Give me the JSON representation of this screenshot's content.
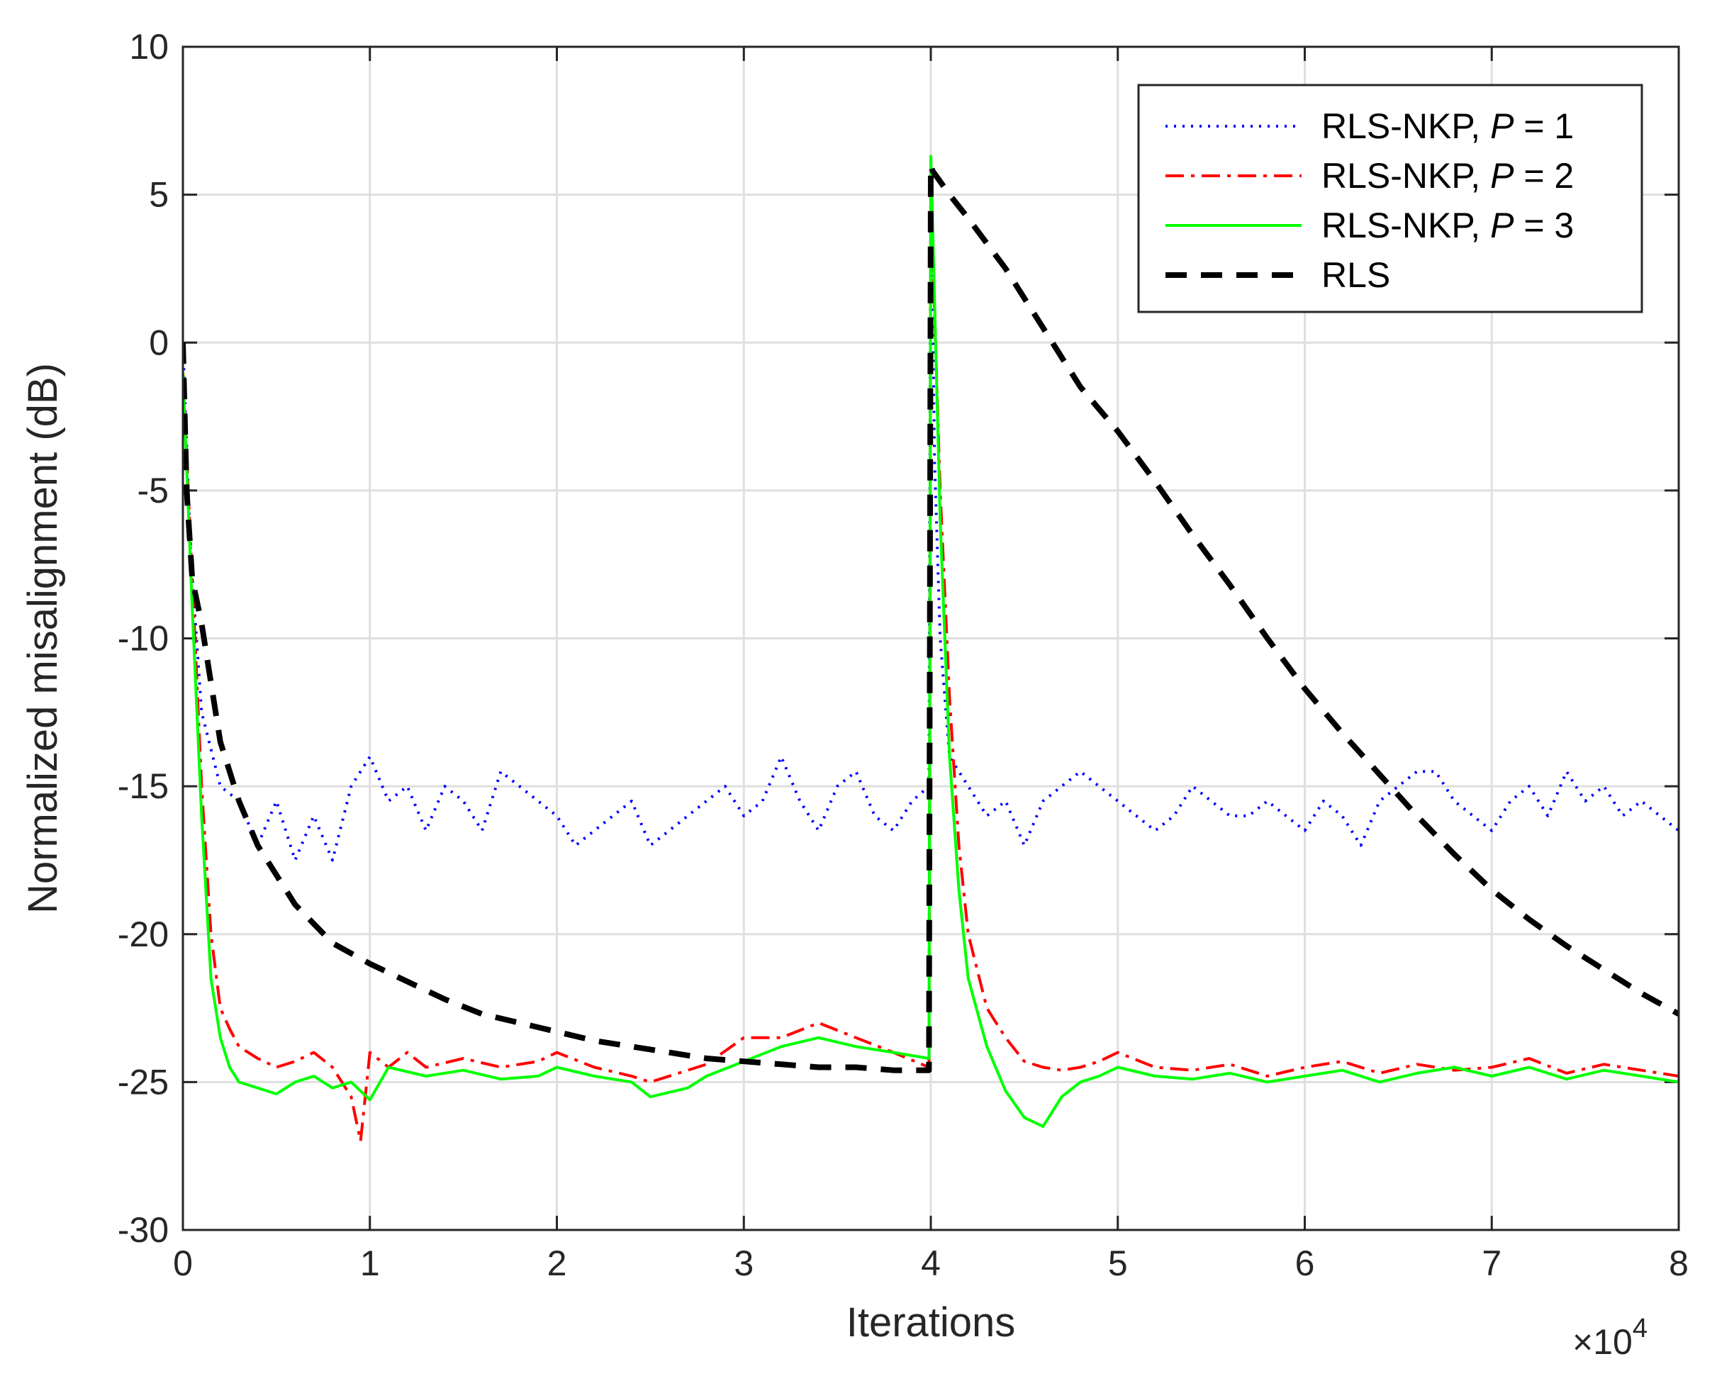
{
  "chart_data": {
    "type": "line",
    "title": "",
    "xlabel": "Iterations",
    "ylabel": "Normalized misalignment (dB)",
    "x_multiplier": "×10",
    "x_multiplier_exp": "4",
    "xlim": [
      0,
      8
    ],
    "ylim": [
      -30,
      10
    ],
    "xticks": [
      0,
      1,
      2,
      3,
      4,
      5,
      6,
      7,
      8
    ],
    "xtick_labels": [
      "0",
      "1",
      "2",
      "3",
      "4",
      "5",
      "6",
      "7",
      "8"
    ],
    "yticks": [
      10,
      5,
      0,
      -5,
      -10,
      -15,
      -20,
      -25,
      -30
    ],
    "ytick_labels": [
      "10",
      "5",
      "0",
      "-5",
      "-10",
      "-15",
      "-20",
      "-25",
      "-30"
    ],
    "grid": true,
    "legend_position": "top-right",
    "legend": [
      {
        "prefix": "RLS-NKP, ",
        "var": "P",
        "suffix": " = 1"
      },
      {
        "prefix": "RLS-NKP, ",
        "var": "P",
        "suffix": " = 2"
      },
      {
        "prefix": "RLS-NKP, ",
        "var": "P",
        "suffix": " = 3"
      },
      {
        "prefix": "RLS",
        "var": "",
        "suffix": ""
      }
    ],
    "series": [
      {
        "name": "RLS-NKP, P = 1",
        "color": "#0000ff",
        "style": "dotted",
        "x": [
          0,
          0.04,
          0.1,
          0.2,
          0.3,
          0.4,
          0.5,
          0.6,
          0.7,
          0.8,
          0.9,
          1.0,
          1.1,
          1.2,
          1.3,
          1.4,
          1.5,
          1.6,
          1.7,
          1.8,
          1.9,
          2.0,
          2.1,
          2.2,
          2.3,
          2.4,
          2.5,
          2.6,
          2.7,
          2.8,
          2.9,
          3.0,
          3.1,
          3.2,
          3.3,
          3.4,
          3.5,
          3.6,
          3.7,
          3.8,
          3.9,
          3.99,
          4.0,
          4.02,
          4.05,
          4.1,
          4.2,
          4.3,
          4.4,
          4.5,
          4.6,
          4.7,
          4.8,
          4.9,
          5.0,
          5.1,
          5.2,
          5.3,
          5.4,
          5.5,
          5.6,
          5.7,
          5.8,
          5.9,
          6.0,
          6.1,
          6.2,
          6.3,
          6.4,
          6.5,
          6.6,
          6.7,
          6.8,
          6.9,
          7.0,
          7.1,
          7.2,
          7.3,
          7.4,
          7.5,
          7.6,
          7.7,
          7.8,
          7.9,
          8.0
        ],
        "y": [
          0,
          -7,
          -12.5,
          -15,
          -15.5,
          -17,
          -15.5,
          -17.5,
          -16,
          -17.5,
          -15,
          -14,
          -15.5,
          -15,
          -16.5,
          -15,
          -15.5,
          -16.5,
          -14.5,
          -15,
          -15.5,
          -16,
          -17,
          -16.5,
          -16,
          -15.5,
          -17,
          -16.5,
          -16,
          -15.5,
          -15,
          -16,
          -15.5,
          -14,
          -15.5,
          -16.5,
          -15,
          -14.5,
          -16,
          -16.5,
          -15.5,
          -15,
          6,
          -4,
          -10,
          -14,
          -15,
          -16,
          -15.5,
          -17,
          -15.5,
          -15,
          -14.5,
          -15,
          -15.5,
          -16,
          -16.5,
          -16,
          -15,
          -15.5,
          -16,
          -16,
          -15.5,
          -16,
          -16.5,
          -15.5,
          -16,
          -17,
          -15.5,
          -15,
          -14.5,
          -14.5,
          -15.5,
          -16,
          -16.5,
          -15.5,
          -15,
          -16,
          -14.5,
          -15.5,
          -15,
          -16,
          -15.5,
          -16,
          -16.5
        ]
      },
      {
        "name": "RLS-NKP, P = 2",
        "color": "#ff0000",
        "style": "dashdot",
        "x": [
          0,
          0.05,
          0.1,
          0.15,
          0.2,
          0.25,
          0.3,
          0.4,
          0.5,
          0.6,
          0.7,
          0.8,
          0.9,
          0.95,
          1.0,
          1.1,
          1.2,
          1.3,
          1.5,
          1.7,
          1.9,
          2.0,
          2.2,
          2.4,
          2.5,
          2.7,
          2.8,
          3.0,
          3.2,
          3.4,
          3.6,
          3.8,
          3.99,
          4.0,
          4.05,
          4.1,
          4.15,
          4.2,
          4.3,
          4.4,
          4.5,
          4.6,
          4.7,
          4.8,
          4.9,
          5.0,
          5.2,
          5.4,
          5.6,
          5.8,
          6.0,
          6.2,
          6.4,
          6.6,
          6.8,
          7.0,
          7.2,
          7.4,
          7.6,
          7.8,
          8.0
        ],
        "y": [
          -1,
          -8,
          -15,
          -20,
          -22.5,
          -23.2,
          -23.8,
          -24.2,
          -24.5,
          -24.3,
          -24,
          -24.5,
          -25.5,
          -27,
          -24,
          -24.5,
          -24,
          -24.5,
          -24.2,
          -24.5,
          -24.3,
          -24,
          -24.5,
          -24.8,
          -25,
          -24.6,
          -24.4,
          -23.5,
          -23.5,
          -23,
          -23.5,
          -24,
          -24.5,
          5,
          -5,
          -12,
          -17,
          -20,
          -22.5,
          -23.5,
          -24.3,
          -24.5,
          -24.6,
          -24.5,
          -24.3,
          -24,
          -24.5,
          -24.6,
          -24.4,
          -24.8,
          -24.5,
          -24.3,
          -24.7,
          -24.4,
          -24.6,
          -24.5,
          -24.2,
          -24.7,
          -24.4,
          -24.6,
          -24.8
        ]
      },
      {
        "name": "RLS-NKP, P = 3",
        "color": "#00ff00",
        "style": "solid",
        "x": [
          0,
          0.05,
          0.1,
          0.15,
          0.2,
          0.25,
          0.3,
          0.4,
          0.5,
          0.6,
          0.7,
          0.8,
          0.9,
          1.0,
          1.1,
          1.3,
          1.5,
          1.7,
          1.9,
          2.0,
          2.2,
          2.4,
          2.5,
          2.7,
          2.8,
          3.0,
          3.2,
          3.4,
          3.6,
          3.8,
          3.99,
          4.0,
          4.05,
          4.1,
          4.15,
          4.2,
          4.3,
          4.4,
          4.5,
          4.6,
          4.7,
          4.8,
          4.9,
          5.0,
          5.2,
          5.4,
          5.6,
          5.8,
          6.0,
          6.2,
          6.4,
          6.6,
          6.8,
          7.0,
          7.2,
          7.4,
          7.6,
          7.8,
          8.0
        ],
        "y": [
          -1,
          -9,
          -16,
          -21.5,
          -23.5,
          -24.5,
          -25,
          -25.2,
          -25.4,
          -25,
          -24.8,
          -25.2,
          -25,
          -25.6,
          -24.5,
          -24.8,
          -24.6,
          -24.9,
          -24.8,
          -24.5,
          -24.8,
          -25,
          -25.5,
          -25.2,
          -24.8,
          -24.3,
          -23.8,
          -23.5,
          -23.8,
          -24,
          -24.2,
          6.3,
          -6,
          -14,
          -18.5,
          -21.5,
          -23.8,
          -25.3,
          -26.2,
          -26.5,
          -25.5,
          -25,
          -24.8,
          -24.5,
          -24.8,
          -24.9,
          -24.7,
          -25,
          -24.8,
          -24.6,
          -25,
          -24.7,
          -24.5,
          -24.8,
          -24.5,
          -24.9,
          -24.6,
          -24.8,
          -25
        ]
      },
      {
        "name": "RLS",
        "color": "#000000",
        "style": "dashed",
        "x": [
          0,
          0.02,
          0.05,
          0.1,
          0.15,
          0.2,
          0.3,
          0.4,
          0.5,
          0.6,
          0.8,
          1.0,
          1.2,
          1.4,
          1.6,
          1.8,
          2.0,
          2.2,
          2.4,
          2.6,
          2.8,
          3.0,
          3.2,
          3.4,
          3.6,
          3.8,
          3.99,
          4.0,
          4.01,
          4.1,
          4.2,
          4.4,
          4.6,
          4.8,
          5.0,
          5.2,
          5.4,
          5.6,
          5.8,
          6.0,
          6.2,
          6.4,
          6.6,
          6.8,
          7.0,
          7.2,
          7.4,
          7.6,
          7.8,
          8.0
        ],
        "y": [
          0,
          -5,
          -8,
          -9.5,
          -11.5,
          -13.5,
          -15.5,
          -17,
          -18,
          -19,
          -20.3,
          -21,
          -21.6,
          -22.2,
          -22.7,
          -23,
          -23.3,
          -23.6,
          -23.8,
          -24,
          -24.2,
          -24.3,
          -24.4,
          -24.5,
          -24.5,
          -24.6,
          -24.6,
          6,
          5.8,
          5,
          4.2,
          2.5,
          0.5,
          -1.5,
          -3,
          -4.7,
          -6.5,
          -8.2,
          -10,
          -11.7,
          -13.2,
          -14.6,
          -16,
          -17.3,
          -18.5,
          -19.5,
          -20.4,
          -21.2,
          -22,
          -22.7
        ]
      }
    ]
  }
}
